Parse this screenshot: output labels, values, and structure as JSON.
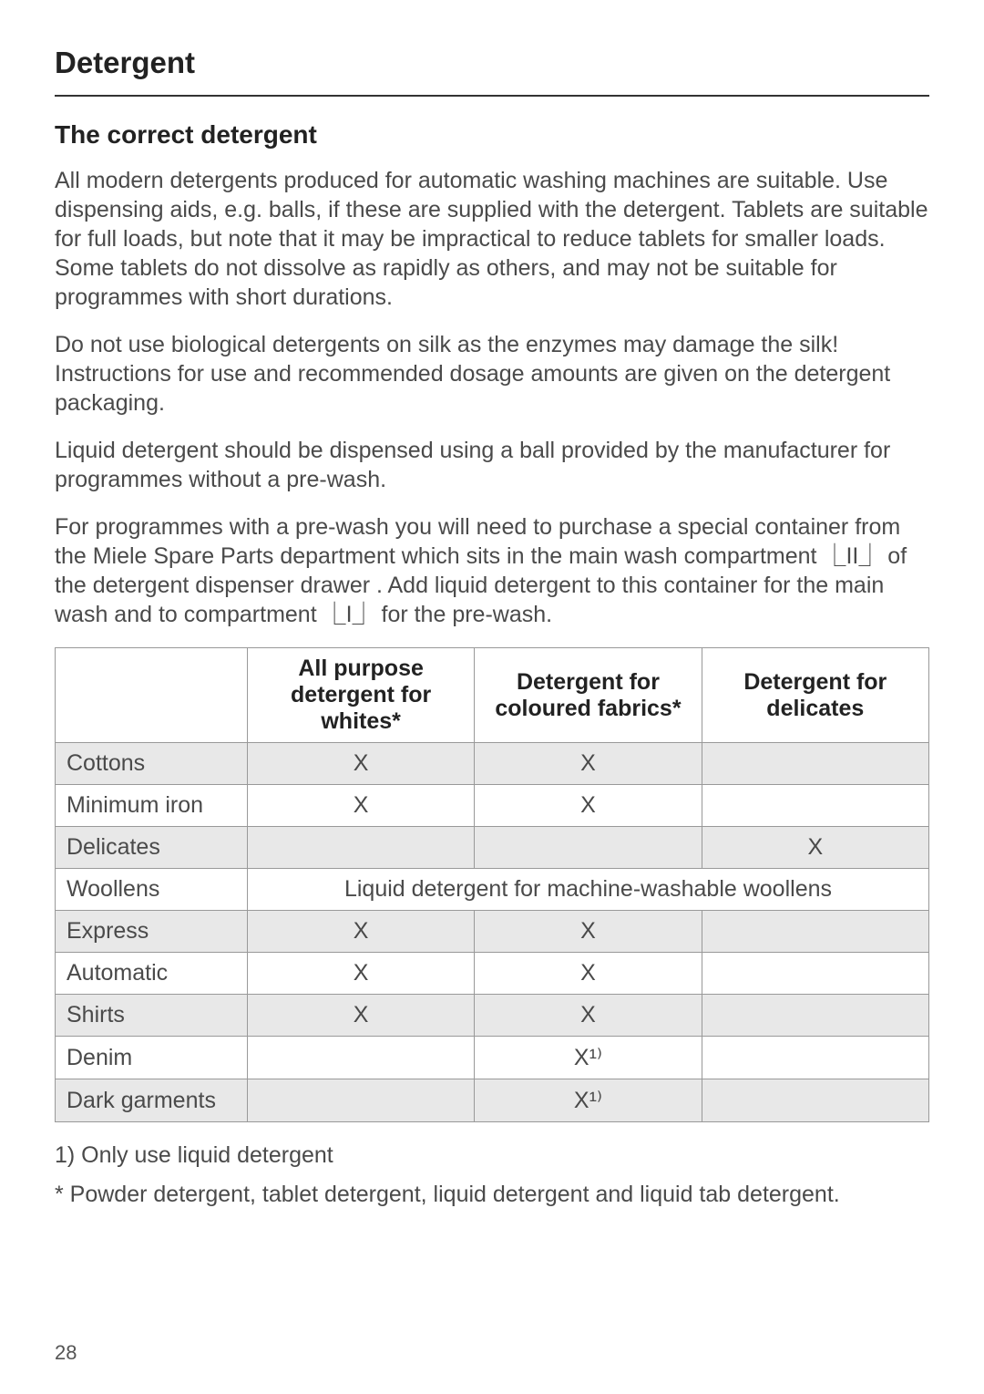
{
  "section_title": "Detergent",
  "subsection_title": "The correct detergent",
  "paragraphs": {
    "p1": "All modern detergents produced for automatic washing machines are suitable. Use dispensing aids, e.g. balls, if these are supplied with the detergent. Tablets are suitable for full loads, but note that it may be impractical to reduce tablets for smaller loads. Some tablets do not dissolve as rapidly as others, and may not be suitable for programmes with short durations.",
    "p2": "Do not use biological detergents on silk as the enzymes may damage the silk! Instructions for use and recommended dosage amounts are given on the detergent packaging.",
    "p3": "Liquid detergent should be dispensed using a ball provided by the manufacturer for programmes without a pre-wash.",
    "p4a": "For programmes with a pre-wash you will need to purchase a special container from the Miele Spare Parts department which sits in the main wash compartment ",
    "p4b": " of the detergent dispenser drawer . Add liquid detergent to this container for the main wash and to compartment ",
    "p4c": " for the pre-wash.",
    "comp_icon_main": "⎿II⏌",
    "comp_icon_pre": "⎿I⏌"
  },
  "table": {
    "headers": {
      "h1": "",
      "h2": "All purpose detergent for whites*",
      "h3": "Detergent for coloured fabrics*",
      "h4": "Detergent for delicates"
    },
    "rows": [
      {
        "label": "Cottons",
        "c1": "X",
        "c2": "X",
        "c3": "",
        "shaded": true
      },
      {
        "label": "Minimum iron",
        "c1": "X",
        "c2": "X",
        "c3": "",
        "shaded": false
      },
      {
        "label": "Delicates",
        "c1": "",
        "c2": "",
        "c3": "X",
        "shaded": true
      },
      {
        "label": "Woollens",
        "span": "Liquid detergent for machine-washable woollens",
        "shaded": false
      },
      {
        "label": "Express",
        "c1": "X",
        "c2": "X",
        "c3": "",
        "shaded": true
      },
      {
        "label": "Automatic",
        "c1": "X",
        "c2": "X",
        "c3": "",
        "shaded": false
      },
      {
        "label": "Shirts",
        "c1": "X",
        "c2": "X",
        "c3": "",
        "shaded": true
      },
      {
        "label": "Denim",
        "c1": "",
        "c2": "X¹⁾",
        "c3": "",
        "shaded": false
      },
      {
        "label": "Dark garments",
        "c1": "",
        "c2": "X¹⁾",
        "c3": "",
        "shaded": true
      }
    ]
  },
  "footnotes": {
    "f1": "1) Only use liquid detergent",
    "f2": "* Powder detergent, tablet detergent, liquid detergent and liquid tab detergent."
  },
  "page_number": "28"
}
